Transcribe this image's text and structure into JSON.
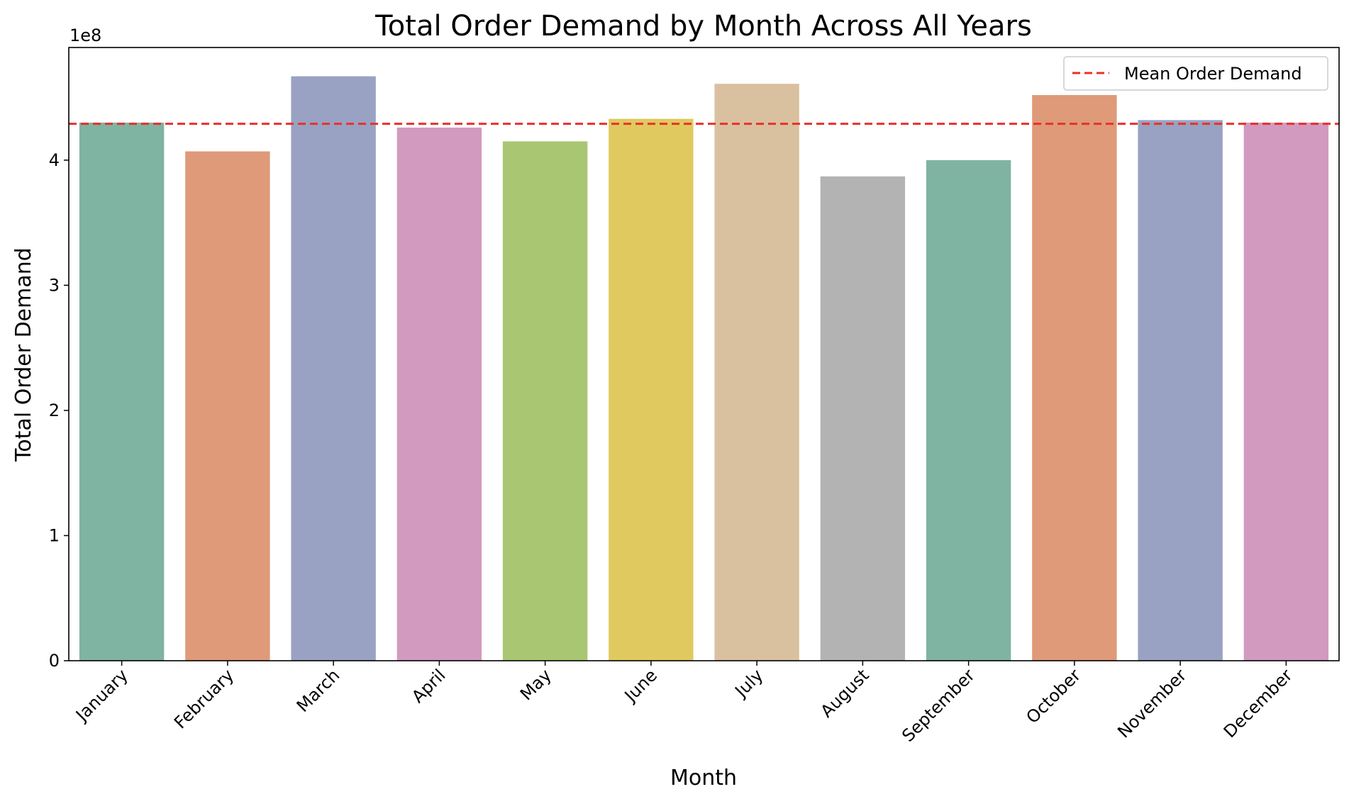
{
  "chart_data": {
    "type": "bar",
    "title": "Total Order Demand by Month Across All Years",
    "xlabel": "Month",
    "ylabel": "Total Order Demand",
    "y_scale_label": "1e8",
    "y_multiplier": 100000000,
    "ylim": [
      0,
      4.9
    ],
    "yticks": [
      0,
      1,
      2,
      3,
      4
    ],
    "yticklabels": [
      "0",
      "1",
      "2",
      "3",
      "4"
    ],
    "categories": [
      "January",
      "February",
      "March",
      "April",
      "May",
      "June",
      "July",
      "August",
      "September",
      "October",
      "November",
      "December"
    ],
    "values": [
      4.3,
      4.07,
      4.67,
      4.26,
      4.15,
      4.33,
      4.61,
      3.87,
      4.0,
      4.52,
      4.32,
      4.3
    ],
    "colors": [
      "#7fb3a2",
      "#de9a79",
      "#99a2c3",
      "#d29abe",
      "#a9c672",
      "#e0c95f",
      "#d9c19f",
      "#b3b3b3",
      "#7fb3a2",
      "#de9a79",
      "#99a2c3",
      "#d29abe"
    ],
    "mean_line": {
      "value": 4.29,
      "label": "Mean Order Demand",
      "color": "#e8312a",
      "style": "dashed"
    },
    "legend_position": "top-right",
    "grid": false
  }
}
